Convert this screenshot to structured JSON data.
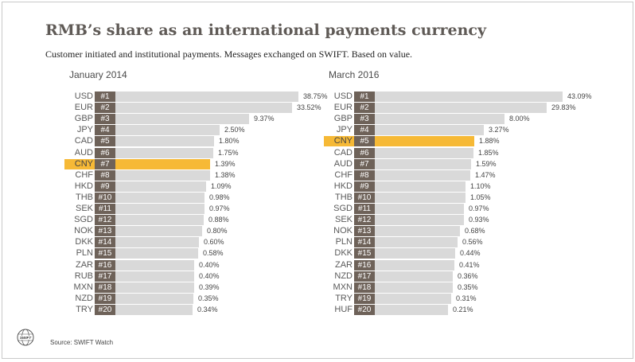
{
  "title": "RMB’s share as an international payments currency",
  "subtitle": "Customer initiated and institutional payments. Messages exchanged on SWIFT. Based on value.",
  "source": "Source: SWIFT Watch",
  "logo_text": "SWIFT",
  "colors": {
    "bar": "#d9d9d9",
    "highlight": "#f6b936",
    "rank_box": "#6e6259",
    "title": "#5f5a56"
  },
  "chart_data": [
    {
      "type": "bar",
      "title": "January 2014",
      "highlight": "CNY",
      "rows": [
        {
          "currency": "USD",
          "rank": "#1",
          "label": "38.75%",
          "value": 38.75
        },
        {
          "currency": "EUR",
          "rank": "#2",
          "label": "33.52%",
          "value": 33.52
        },
        {
          "currency": "GBP",
          "rank": "#3",
          "label": "9.37%",
          "value": 9.37
        },
        {
          "currency": "JPY",
          "rank": "#4",
          "label": "2.50%",
          "value": 2.5
        },
        {
          "currency": "CAD",
          "rank": "#5",
          "label": "1.80%",
          "value": 1.8
        },
        {
          "currency": "AUD",
          "rank": "#6",
          "label": "1.75%",
          "value": 1.75
        },
        {
          "currency": "CNY",
          "rank": "#7",
          "label": "1.39%",
          "value": 1.39
        },
        {
          "currency": "CHF",
          "rank": "#8",
          "label": "1.38%",
          "value": 1.38
        },
        {
          "currency": "HKD",
          "rank": "#9",
          "label": "1.09%",
          "value": 1.09
        },
        {
          "currency": "THB",
          "rank": "#10",
          "label": "0.98%",
          "value": 0.98
        },
        {
          "currency": "SEK",
          "rank": "#11",
          "label": "0.97%",
          "value": 0.97
        },
        {
          "currency": "SGD",
          "rank": "#12",
          "label": "0.88%",
          "value": 0.88
        },
        {
          "currency": "NOK",
          "rank": "#13",
          "label": "0.80%",
          "value": 0.8
        },
        {
          "currency": "DKK",
          "rank": "#14",
          "label": "0.60%",
          "value": 0.6
        },
        {
          "currency": "PLN",
          "rank": "#15",
          "label": "0.58%",
          "value": 0.58
        },
        {
          "currency": "ZAR",
          "rank": "#16",
          "label": "0.40%",
          "value": 0.4
        },
        {
          "currency": "RUB",
          "rank": "#17",
          "label": "0.40%",
          "value": 0.4
        },
        {
          "currency": "MXN",
          "rank": "#18",
          "label": "0.39%",
          "value": 0.39
        },
        {
          "currency": "NZD",
          "rank": "#19",
          "label": "0.35%",
          "value": 0.35
        },
        {
          "currency": "TRY",
          "rank": "#20",
          "label": "0.34%",
          "value": 0.34
        }
      ]
    },
    {
      "type": "bar",
      "title": "March 2016",
      "highlight": "CNY",
      "rows": [
        {
          "currency": "USD",
          "rank": "#1",
          "label": "43.09%",
          "value": 43.09
        },
        {
          "currency": "EUR",
          "rank": "#2",
          "label": "29.83%",
          "value": 29.83
        },
        {
          "currency": "GBP",
          "rank": "#3",
          "label": "8.00%",
          "value": 8.0
        },
        {
          "currency": "JPY",
          "rank": "#4",
          "label": "3.27%",
          "value": 3.27
        },
        {
          "currency": "CNY",
          "rank": "#5",
          "label": "1.88%",
          "value": 1.88
        },
        {
          "currency": "CAD",
          "rank": "#6",
          "label": "1.85%",
          "value": 1.85
        },
        {
          "currency": "AUD",
          "rank": "#7",
          "label": "1.59%",
          "value": 1.59
        },
        {
          "currency": "CHF",
          "rank": "#8",
          "label": "1.47%",
          "value": 1.47
        },
        {
          "currency": "HKD",
          "rank": "#9",
          "label": "1.10%",
          "value": 1.1
        },
        {
          "currency": "THB",
          "rank": "#10",
          "label": "1.05%",
          "value": 1.05
        },
        {
          "currency": "SGD",
          "rank": "#11",
          "label": "0.97%",
          "value": 0.97
        },
        {
          "currency": "SEK",
          "rank": "#12",
          "label": "0.93%",
          "value": 0.93
        },
        {
          "currency": "NOK",
          "rank": "#13",
          "label": "0.68%",
          "value": 0.68
        },
        {
          "currency": "PLN",
          "rank": "#14",
          "label": "0.56%",
          "value": 0.56
        },
        {
          "currency": "DKK",
          "rank": "#15",
          "label": "0.44%",
          "value": 0.44
        },
        {
          "currency": "ZAR",
          "rank": "#16",
          "label": "0.41%",
          "value": 0.41
        },
        {
          "currency": "NZD",
          "rank": "#17",
          "label": "0.36%",
          "value": 0.36
        },
        {
          "currency": "MXN",
          "rank": "#18",
          "label": "0.35%",
          "value": 0.35
        },
        {
          "currency": "TRY",
          "rank": "#19",
          "label": "0.31%",
          "value": 0.31
        },
        {
          "currency": "HUF",
          "rank": "#20",
          "label": "0.21%",
          "value": 0.21
        }
      ]
    }
  ]
}
